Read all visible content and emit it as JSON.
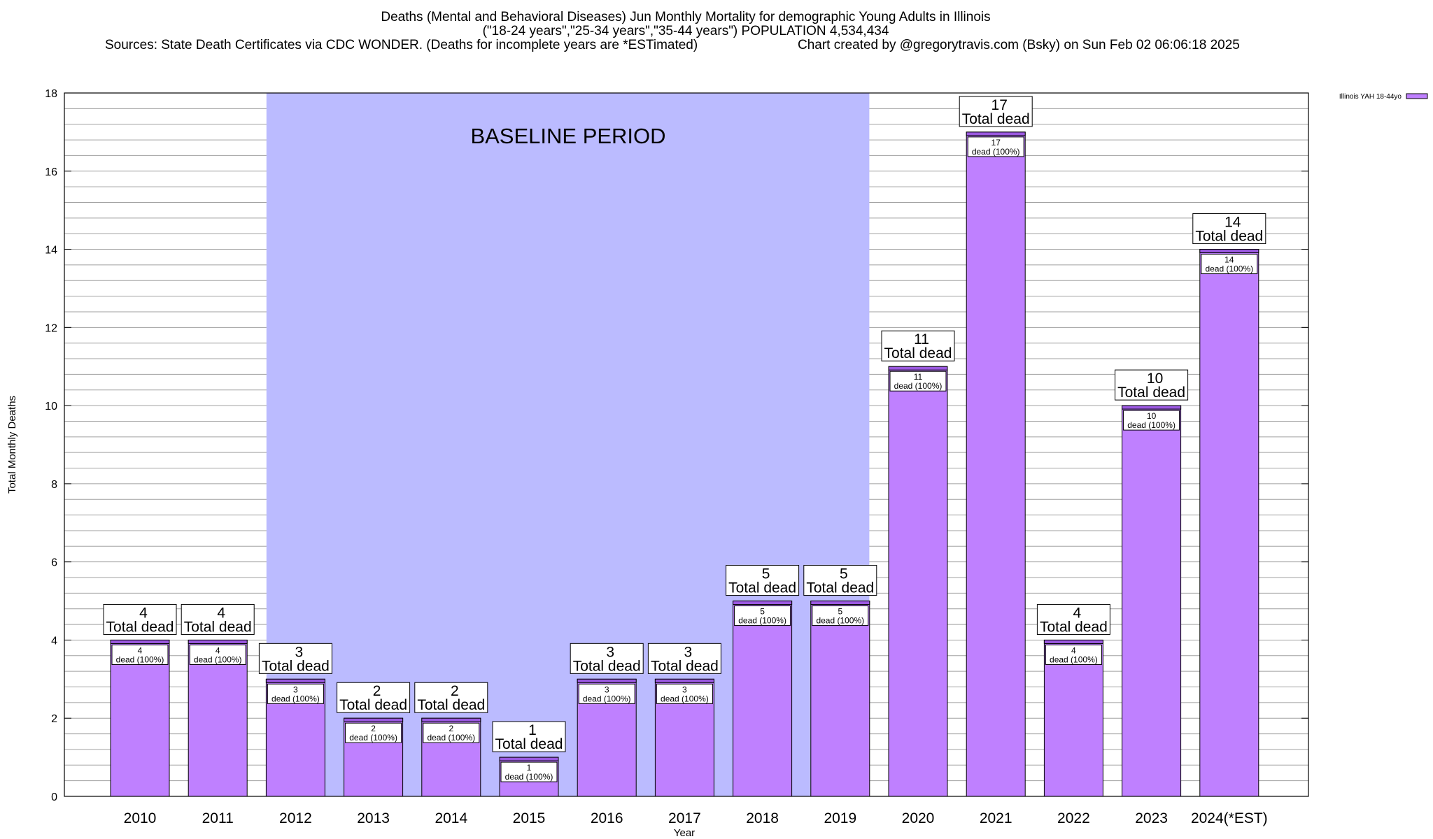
{
  "header": {
    "title_line1": "Deaths (Mental and Behavioral Diseases) Jun Monthly Mortality for demographic Young Adults in Illinois",
    "title_line2": "(\"18-24 years\",\"25-34 years\",\"35-44 years\") POPULATION 4,534,434",
    "sources": "Sources: State Death Certificates via CDC WONDER. (Deaths for incomplete years are *ESTimated)",
    "credit": "Chart created by @gregorytravis.com (Bsky) on Sun Feb 02 06:06:18 2025"
  },
  "colors": {
    "bar_fill": "#bf80ff",
    "bar_top_band": "#9b59e0",
    "baseline_shade": "#bbbbff",
    "grid": "#a0a0a0"
  },
  "chart_data": {
    "type": "bar",
    "xlabel": "Year",
    "ylabel": "Total Monthly Deaths",
    "ylim": [
      0,
      18
    ],
    "yticks": [
      0,
      2,
      4,
      6,
      8,
      10,
      12,
      14,
      16,
      18
    ],
    "grid": true,
    "legend_position": "top-right",
    "categories": [
      "2010",
      "2011",
      "2012",
      "2013",
      "2014",
      "2015",
      "2016",
      "2017",
      "2018",
      "2019",
      "2020",
      "2021",
      "2022",
      "2023",
      "2024(*EST)"
    ],
    "series": [
      {
        "name": "Illinois YAH 18-44yo",
        "values": [
          4,
          4,
          3,
          2,
          2,
          1,
          3,
          3,
          5,
          5,
          11,
          17,
          4,
          10,
          14
        ]
      }
    ],
    "total_label_text": "Total dead",
    "inner_label_text": "dead (100%)",
    "baseline": {
      "label": "BASELINE PERIOD",
      "start": "2012",
      "end": "2019"
    }
  }
}
